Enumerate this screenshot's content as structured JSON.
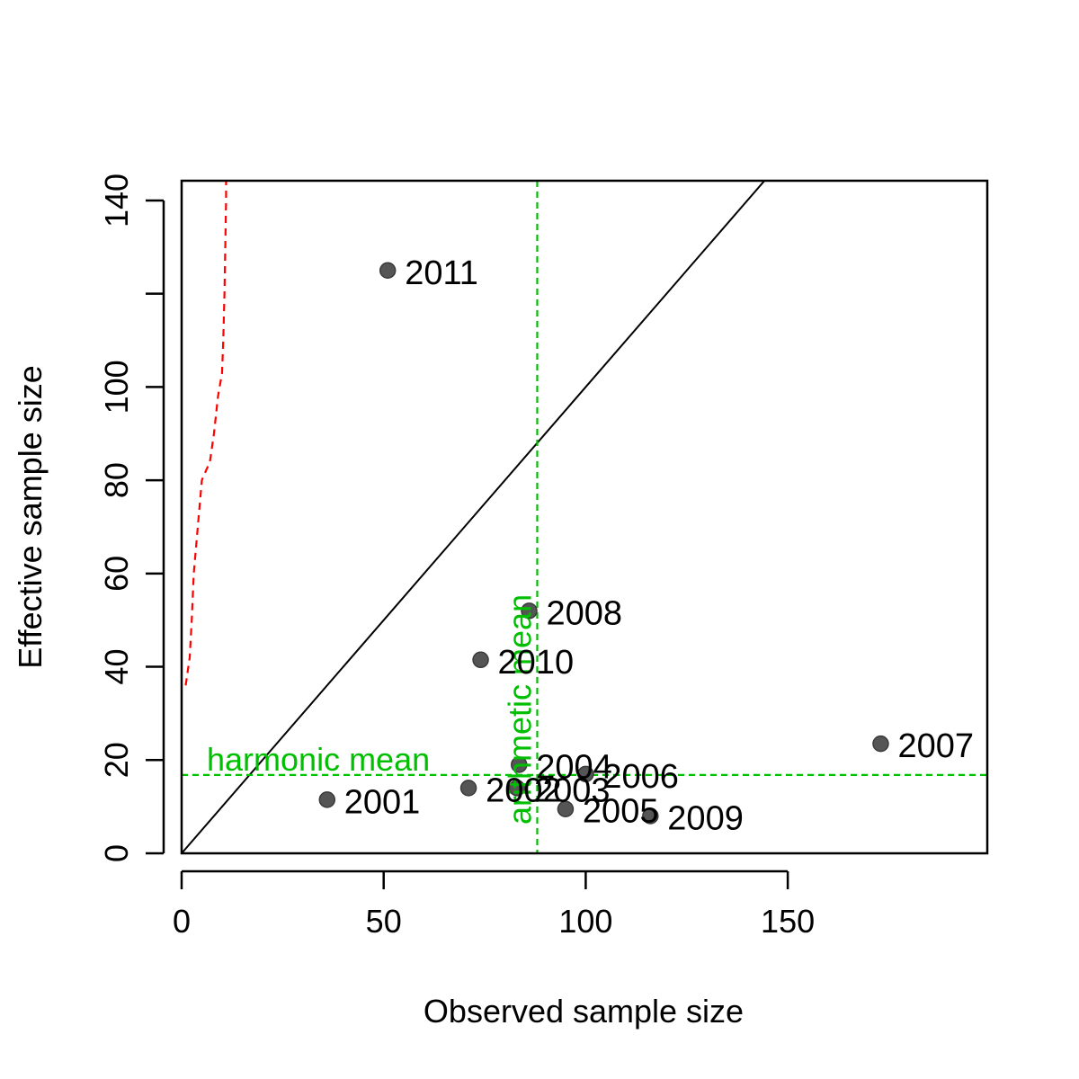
{
  "chart_data": {
    "type": "scatter",
    "xlabel": "Observed sample size",
    "ylabel": "Effective sample size",
    "xlim": [
      0,
      200
    ],
    "ylim": [
      0,
      145
    ],
    "x_ticks": [
      0,
      50,
      100,
      150
    ],
    "y_ticks": [
      0,
      20,
      40,
      60,
      80,
      100,
      120,
      140
    ],
    "y_tick_labels": [
      "0",
      "20",
      "40",
      "60",
      "80",
      "100",
      "",
      "140"
    ],
    "grid": false,
    "points": [
      {
        "label": "2001",
        "x": 36,
        "y": 11.5
      },
      {
        "label": "2002",
        "x": 71,
        "y": 14
      },
      {
        "label": "2003",
        "x": 83,
        "y": 14
      },
      {
        "label": "2004",
        "x": 83.5,
        "y": 19
      },
      {
        "label": "2005",
        "x": 95,
        "y": 9.5
      },
      {
        "label": "2006",
        "x": 100,
        "y": 17
      },
      {
        "label": "2007",
        "x": 173,
        "y": 23.5
      },
      {
        "label": "2008",
        "x": 86,
        "y": 52
      },
      {
        "label": "2009",
        "x": 116,
        "y": 8
      },
      {
        "label": "2010",
        "x": 74,
        "y": 41.5
      },
      {
        "label": "2011",
        "x": 51,
        "y": 125
      }
    ],
    "point_color": "#555555",
    "identity_line": {
      "from": [
        0,
        0
      ],
      "to": [
        145,
        145
      ],
      "color": "#000000"
    },
    "harmonic_mean": {
      "label": "harmonic mean",
      "value": 16.8,
      "color": "#00bf00"
    },
    "arithmetic_mean": {
      "label": "arithmetic mean",
      "value": 88,
      "color": "#00bf00"
    },
    "red_dashed_curve": {
      "color": "#ff0000",
      "points": [
        [
          1,
          36
        ],
        [
          2,
          42
        ],
        [
          2.5,
          50
        ],
        [
          3,
          60
        ],
        [
          4,
          70
        ],
        [
          5,
          80
        ],
        [
          7,
          84
        ],
        [
          8,
          90
        ],
        [
          9,
          98
        ],
        [
          10,
          103
        ],
        [
          10.3,
          110
        ],
        [
          10.6,
          120
        ],
        [
          10.8,
          130
        ],
        [
          11,
          140
        ],
        [
          11,
          145
        ]
      ]
    }
  }
}
